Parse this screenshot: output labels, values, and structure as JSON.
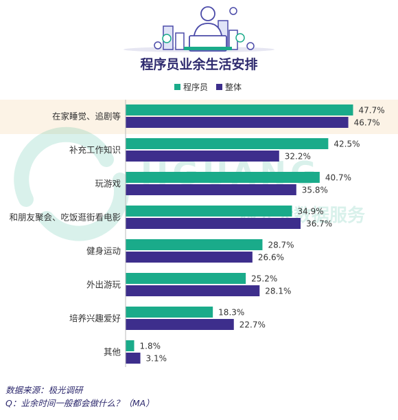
{
  "chart_data": {
    "type": "bar",
    "title": "程序员业余生活安排",
    "categories": [
      "在家睡觉、追剧等",
      "补充工作知识",
      "玩游戏",
      "和朋友聚会、吃饭逛街看电影",
      "健身运动",
      "外出游玩",
      "培养兴趣爱好",
      "其他"
    ],
    "series": [
      {
        "name": "程序员",
        "color": "#1aab8a",
        "values": [
          47.7,
          42.5,
          40.7,
          34.9,
          28.7,
          25.2,
          18.3,
          1.8
        ],
        "labels": [
          "47.7%",
          "42.5%",
          "40.7%",
          "34.9%",
          "28.7%",
          "25.2%",
          "18.3%",
          "1.8%"
        ]
      },
      {
        "name": "整体",
        "color": "#3d2e8c",
        "values": [
          46.7,
          32.2,
          35.8,
          36.7,
          26.6,
          28.1,
          22.7,
          3.1
        ],
        "labels": [
          "46.7%",
          "32.2%",
          "35.8%",
          "36.7%",
          "26.6%",
          "28.1%",
          "22.7%",
          "3.1%"
        ]
      }
    ],
    "orientation": "horizontal",
    "legend": "top-center",
    "highlight_row": 0,
    "highlight_color": "#fcf3e6",
    "grid": false
  },
  "watermark": {
    "brand": "JIGUANG",
    "text": "极光大数据服务"
  },
  "footer": {
    "source": "数据来源：极光调研",
    "question": "Q：业余时间一般都会做什么？（MA）"
  }
}
